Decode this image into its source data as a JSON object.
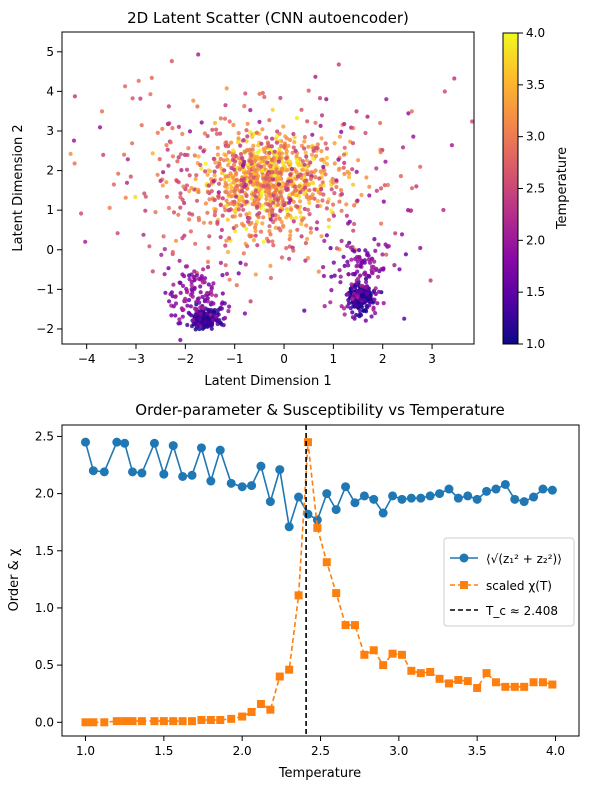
{
  "chart_data": [
    {
      "type": "scatter",
      "title": "2D Latent Scatter (CNN autoencoder)",
      "xlabel": "Latent Dimension 1",
      "ylabel": "Latent Dimension 2",
      "xlim": [
        -4.5,
        3.85
      ],
      "ylim": [
        -2.38,
        5.5
      ],
      "xticks": [
        -4,
        -3,
        -2,
        -1,
        0,
        1,
        2,
        3
      ],
      "yticks": [
        -2,
        -1,
        0,
        1,
        2,
        3,
        4,
        5
      ],
      "colorbar": {
        "label": "Temperature",
        "range": [
          1.0,
          4.0
        ],
        "ticks": [
          "1.0",
          "1.5",
          "2.0",
          "2.5",
          "3.0",
          "3.5",
          "4.0"
        ],
        "colormap": "plasma"
      },
      "point_groups": [
        {
          "cx": -0.4,
          "cy": 1.8,
          "sx": 0.65,
          "sy": 0.55,
          "n": 650,
          "tmin": 2.9,
          "tmax": 4.0
        },
        {
          "cx": -0.5,
          "cy": 1.6,
          "sx": 1.15,
          "sy": 0.9,
          "n": 380,
          "tmin": 2.3,
          "tmax": 3.3
        },
        {
          "cx": -0.2,
          "cy": 1.9,
          "sx": 1.9,
          "sy": 1.25,
          "n": 170,
          "tmin": 1.9,
          "tmax": 3.0
        },
        {
          "cx": -1.6,
          "cy": -1.75,
          "sx": 0.12,
          "sy": 0.13,
          "n": 220,
          "tmin": 1.0,
          "tmax": 1.45
        },
        {
          "cx": -1.75,
          "cy": -1.2,
          "sx": 0.35,
          "sy": 0.5,
          "n": 130,
          "tmin": 1.5,
          "tmax": 2.2
        },
        {
          "cx": 1.55,
          "cy": -1.2,
          "sx": 0.11,
          "sy": 0.16,
          "n": 200,
          "tmin": 1.0,
          "tmax": 1.45
        },
        {
          "cx": 1.6,
          "cy": -0.6,
          "sx": 0.35,
          "sy": 0.55,
          "n": 130,
          "tmin": 1.5,
          "tmax": 2.2
        }
      ]
    },
    {
      "type": "line",
      "title": "Order-parameter & Susceptibility vs Temperature",
      "xlabel": "Temperature",
      "ylabel": "Order & χ",
      "xlim": [
        0.85,
        4.15
      ],
      "ylim": [
        -0.12,
        2.6
      ],
      "xticks": [
        "1.0",
        "1.5",
        "2.0",
        "2.5",
        "3.0",
        "3.5",
        "4.0"
      ],
      "yticks": [
        "0.0",
        "0.5",
        "1.0",
        "1.5",
        "2.0",
        "2.5"
      ],
      "x": [
        1.0,
        1.05,
        1.12,
        1.2,
        1.25,
        1.3,
        1.36,
        1.44,
        1.5,
        1.56,
        1.62,
        1.68,
        1.74,
        1.8,
        1.86,
        1.93,
        2.0,
        2.06,
        2.12,
        2.18,
        2.24,
        2.3,
        2.36,
        2.42,
        2.48,
        2.54,
        2.6,
        2.66,
        2.72,
        2.78,
        2.84,
        2.9,
        2.96,
        3.02,
        3.08,
        3.14,
        3.2,
        3.26,
        3.32,
        3.38,
        3.44,
        3.5,
        3.56,
        3.62,
        3.68,
        3.74,
        3.8,
        3.86,
        3.92,
        3.98
      ],
      "series": [
        {
          "name": "⟨√(z₁² + z₂²)⟩",
          "color": "#1f77b4",
          "marker": "circle",
          "dash": "solid",
          "values": [
            2.45,
            2.2,
            2.19,
            2.45,
            2.44,
            2.19,
            2.18,
            2.44,
            2.17,
            2.42,
            2.15,
            2.16,
            2.4,
            2.11,
            2.38,
            2.09,
            2.06,
            2.07,
            2.24,
            1.93,
            2.21,
            1.71,
            1.97,
            1.82,
            1.77,
            2.0,
            1.86,
            2.06,
            1.92,
            1.98,
            1.95,
            1.83,
            1.98,
            1.95,
            1.96,
            1.96,
            1.98,
            2.0,
            2.04,
            1.96,
            1.98,
            1.95,
            2.02,
            2.04,
            2.08,
            1.95,
            1.93,
            1.97,
            2.04,
            2.03
          ]
        },
        {
          "name": "scaled χ(T)",
          "color": "#ff7f0e",
          "marker": "square",
          "dash": "dashed",
          "values": [
            0.0,
            0.0,
            0.0,
            0.01,
            0.01,
            0.01,
            0.01,
            0.01,
            0.01,
            0.01,
            0.01,
            0.01,
            0.02,
            0.02,
            0.02,
            0.03,
            0.05,
            0.09,
            0.16,
            0.11,
            0.4,
            0.46,
            1.11,
            2.45,
            1.7,
            1.4,
            1.13,
            0.85,
            0.85,
            0.59,
            0.63,
            0.5,
            0.6,
            0.59,
            0.45,
            0.43,
            0.44,
            0.38,
            0.34,
            0.37,
            0.36,
            0.3,
            0.43,
            0.35,
            0.31,
            0.31,
            0.31,
            0.35,
            0.35,
            0.33
          ]
        }
      ],
      "vline": {
        "x": 2.408,
        "name": "T_c ≈ 2.408",
        "color": "#000000",
        "dash": "dashed"
      },
      "legend_position": "center-right"
    }
  ]
}
